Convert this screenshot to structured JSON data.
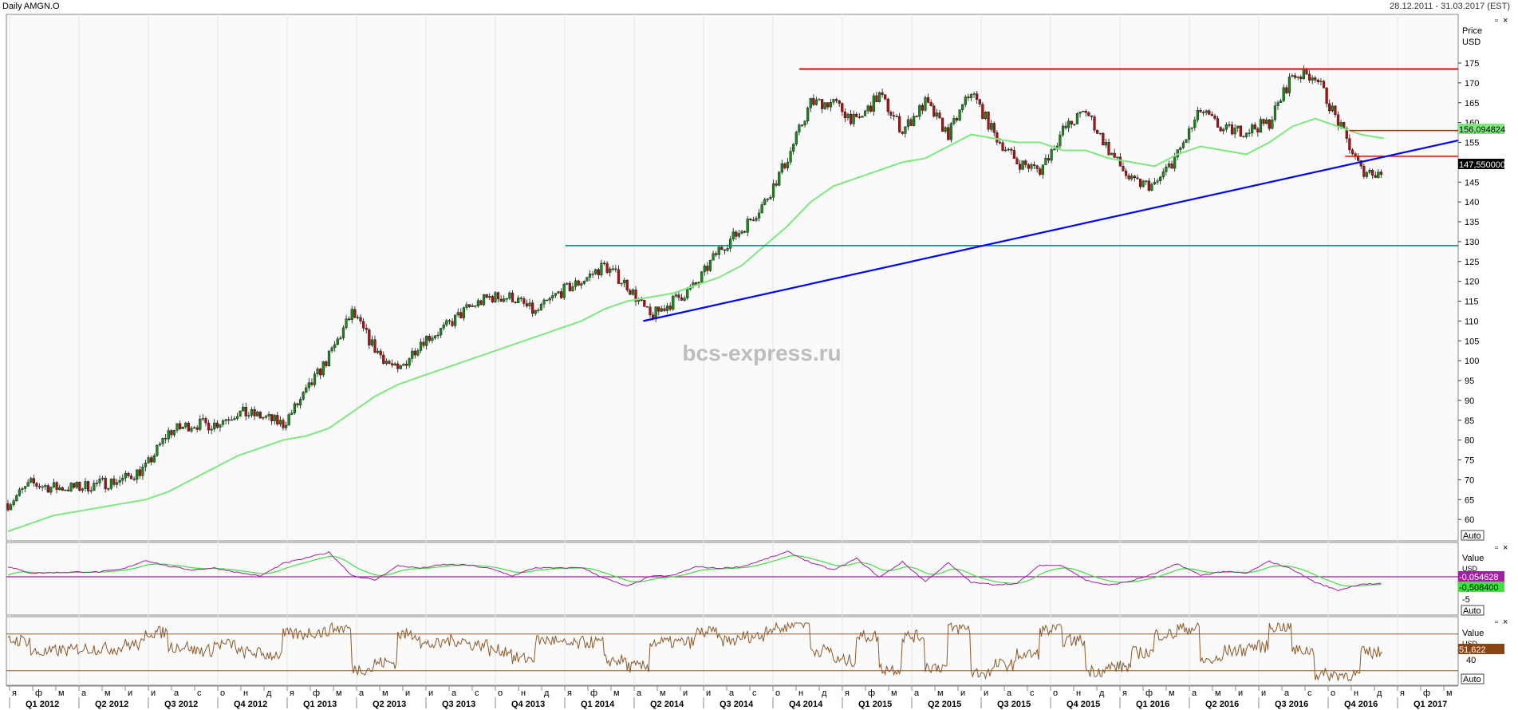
{
  "header": {
    "title": "Daily AMGN.O",
    "date_range": "28.12.2011 - 31.03.2017 (EST)"
  },
  "watermark": "bcs-express.ru",
  "price_panel": {
    "axis_title_1": "Price",
    "axis_title_2": "USD",
    "auto_label": "Auto",
    "ticks": [
      60,
      65,
      70,
      75,
      80,
      85,
      90,
      95,
      100,
      105,
      110,
      115,
      120,
      125,
      130,
      135,
      140,
      145,
      150,
      155,
      160,
      165,
      170,
      175
    ],
    "ma_value_label": "156,094824",
    "last_price_label": "147,550000",
    "colors": {
      "candle_up": "#1a8a1a",
      "candle_down": "#b01010",
      "ma": "#7ee87e",
      "resistance": "#ff0000",
      "support": "#008080",
      "trend": "#0000ff"
    }
  },
  "macd_panel": {
    "axis_title": "Value",
    "auto_label": "Auto",
    "tick_partial": "USD",
    "tick_minus5": "-5",
    "macd_label": "-0,054628",
    "signal_label": "-0,508400",
    "colors": {
      "macd": "#a020a0",
      "signal": "#40e040",
      "zero": "#a020a0"
    }
  },
  "rsi_panel": {
    "axis_title": "Value",
    "auto_label": "Auto",
    "tick_partial": "USD",
    "tick_40": "40",
    "rsi_label": "51,622",
    "colors": {
      "rsi": "#8b5a2b",
      "bands": "#8b5a2b"
    }
  },
  "x_axis": {
    "months": [
      "я",
      "ф",
      "м",
      "а",
      "м",
      "и",
      "и",
      "а",
      "с",
      "о",
      "н",
      "д",
      "я",
      "ф",
      "м",
      "а",
      "м",
      "и",
      "и",
      "а",
      "с",
      "о",
      "н",
      "д",
      "я",
      "ф",
      "м",
      "а",
      "м",
      "и",
      "и",
      "а",
      "с",
      "о",
      "н",
      "д",
      "я",
      "ф",
      "м",
      "а",
      "м",
      "и",
      "и",
      "а",
      "с",
      "о",
      "н",
      "д",
      "я",
      "ф",
      "м",
      "а",
      "м",
      "и",
      "и",
      "а",
      "с",
      "о",
      "н",
      "д",
      "я",
      "ф",
      "м"
    ],
    "quarters": [
      "Q1 2012",
      "Q2 2012",
      "Q3 2012",
      "Q4 2012",
      "Q1 2013",
      "Q2 2013",
      "Q3 2013",
      "Q4 2013",
      "Q1 2014",
      "Q2 2014",
      "Q3 2014",
      "Q4 2014",
      "Q1 2015",
      "Q2 2015",
      "Q3 2015",
      "Q4 2015",
      "Q1 2016",
      "Q2 2016",
      "Q3 2016",
      "Q4 2016",
      "Q1 2017"
    ]
  },
  "chart_data": {
    "type": "line",
    "title": "Daily AMGN.O",
    "ylabel": "Price USD",
    "ylim": [
      56,
      180
    ],
    "x": [
      "2012-01",
      "2012-02",
      "2012-03",
      "2012-04",
      "2012-05",
      "2012-06",
      "2012-07",
      "2012-08",
      "2012-09",
      "2012-10",
      "2012-11",
      "2012-12",
      "2013-01",
      "2013-02",
      "2013-03",
      "2013-04",
      "2013-05",
      "2013-06",
      "2013-07",
      "2013-08",
      "2013-09",
      "2013-10",
      "2013-11",
      "2013-12",
      "2014-01",
      "2014-02",
      "2014-03",
      "2014-04",
      "2014-05",
      "2014-06",
      "2014-07",
      "2014-08",
      "2014-09",
      "2014-10",
      "2014-11",
      "2014-12",
      "2015-01",
      "2015-02",
      "2015-03",
      "2015-04",
      "2015-05",
      "2015-06",
      "2015-07",
      "2015-08",
      "2015-09",
      "2015-10",
      "2015-11",
      "2015-12",
      "2016-01",
      "2016-02",
      "2016-03",
      "2016-04",
      "2016-05",
      "2016-06",
      "2016-07",
      "2016-08",
      "2016-09",
      "2016-10",
      "2016-11",
      "2016-12",
      "2017-01"
    ],
    "series": [
      {
        "values": [
          64,
          69,
          68,
          68,
          69,
          70,
          73,
          82,
          84,
          84,
          87,
          86,
          84,
          92,
          101,
          112,
          103,
          97,
          105,
          108,
          113,
          116,
          116,
          112,
          117,
          120,
          124,
          119,
          111,
          115,
          119,
          128,
          133,
          140,
          151,
          165,
          165,
          160,
          167,
          158,
          165,
          157,
          168,
          157,
          150,
          148,
          158,
          163,
          153,
          145,
          144,
          152,
          163,
          158,
          158,
          160,
          172,
          172,
          160,
          148,
          147
        ]
      },
      {
        "values": [
          57,
          59,
          61,
          62,
          63,
          64,
          65,
          67,
          70,
          73,
          76,
          78,
          80,
          81,
          83,
          87,
          91,
          94,
          96,
          98,
          100,
          102,
          104,
          106,
          108,
          110,
          113,
          115,
          116,
          117,
          119,
          121,
          124,
          129,
          134,
          140,
          144,
          146,
          148,
          150,
          151,
          154,
          157,
          156,
          155,
          155,
          153,
          153,
          151,
          150,
          149,
          152,
          154,
          153,
          152,
          155,
          159,
          161,
          159,
          157,
          156
        ]
      }
    ]
  }
}
